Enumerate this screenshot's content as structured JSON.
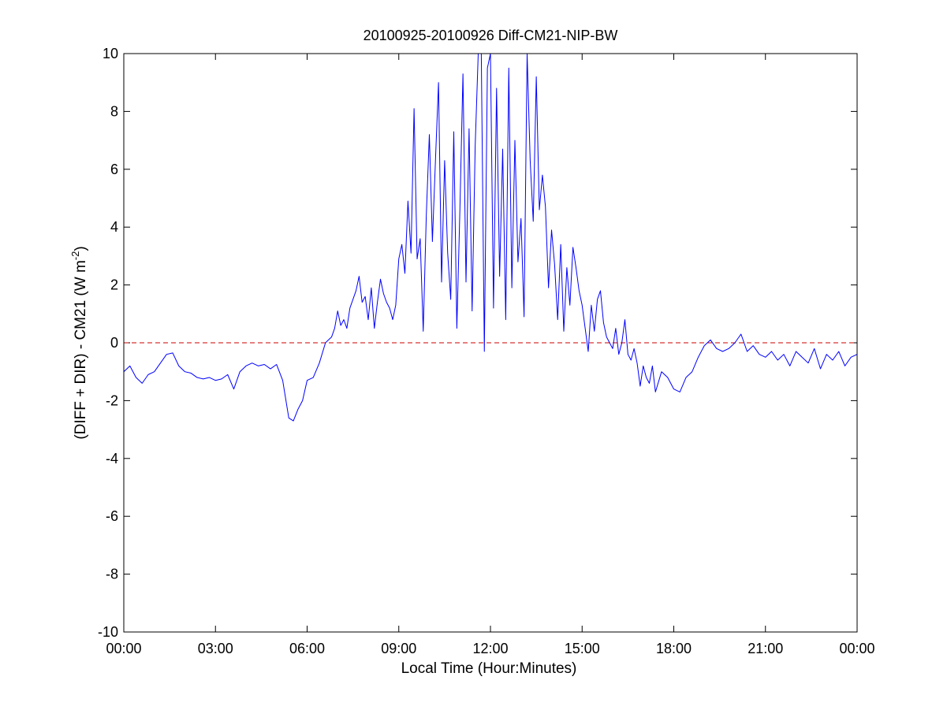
{
  "chart_data": {
    "type": "line",
    "title": "20100925-20100926 Diff-CM21-NIP-BW",
    "xlabel": "Local Time (Hour:Minutes)",
    "ylabel": "(DIFF + DIR) - CM21 (W m-2)",
    "ylabel_parts": {
      "main": "(DIFF + DIR) - CM21 (W m",
      "sup": "-2",
      "close": ")"
    },
    "x_unit": "hours since 00:00 local time",
    "xlim": [
      0,
      24
    ],
    "ylim": [
      -10,
      10
    ],
    "x_ticks": [
      0,
      3,
      6,
      9,
      12,
      15,
      18,
      21,
      24
    ],
    "x_tick_labels": [
      "00:00",
      "03:00",
      "06:00",
      "09:00",
      "12:00",
      "15:00",
      "18:00",
      "21:00",
      "00:00"
    ],
    "y_ticks": [
      -10,
      -8,
      -6,
      -4,
      -2,
      0,
      2,
      4,
      6,
      8,
      10
    ],
    "y_tick_labels": [
      "-10",
      "-8",
      "-6",
      "-4",
      "-2",
      "0",
      "2",
      "4",
      "6",
      "8",
      "10"
    ],
    "grid": false,
    "reference_line": {
      "y": 0,
      "color": "#cc0000",
      "style": "dashed"
    },
    "series": [
      {
        "color": "#0000ff",
        "x": [
          0.0,
          0.2,
          0.4,
          0.6,
          0.8,
          1.0,
          1.2,
          1.4,
          1.6,
          1.8,
          2.0,
          2.2,
          2.4,
          2.6,
          2.8,
          3.0,
          3.2,
          3.4,
          3.6,
          3.8,
          4.0,
          4.2,
          4.4,
          4.6,
          4.8,
          5.0,
          5.2,
          5.4,
          5.55,
          5.7,
          5.85,
          6.0,
          6.2,
          6.4,
          6.6,
          6.8,
          6.9,
          7.0,
          7.1,
          7.2,
          7.3,
          7.4,
          7.5,
          7.6,
          7.7,
          7.8,
          7.9,
          8.0,
          8.1,
          8.2,
          8.3,
          8.4,
          8.5,
          8.6,
          8.7,
          8.8,
          8.9,
          9.0,
          9.1,
          9.2,
          9.3,
          9.4,
          9.5,
          9.6,
          9.7,
          9.8,
          9.9,
          10.0,
          10.1,
          10.2,
          10.3,
          10.4,
          10.5,
          10.6,
          10.7,
          10.8,
          10.9,
          11.0,
          11.1,
          11.2,
          11.3,
          11.4,
          11.5,
          11.6,
          11.7,
          11.8,
          11.9,
          12.0,
          12.1,
          12.2,
          12.3,
          12.4,
          12.5,
          12.6,
          12.7,
          12.8,
          12.9,
          13.0,
          13.1,
          13.2,
          13.3,
          13.4,
          13.5,
          13.6,
          13.7,
          13.8,
          13.9,
          14.0,
          14.1,
          14.2,
          14.3,
          14.4,
          14.5,
          14.6,
          14.7,
          14.8,
          14.9,
          15.0,
          15.1,
          15.2,
          15.3,
          15.4,
          15.5,
          15.6,
          15.7,
          15.8,
          15.9,
          16.0,
          16.1,
          16.2,
          16.3,
          16.4,
          16.5,
          16.6,
          16.7,
          16.8,
          16.9,
          17.0,
          17.1,
          17.2,
          17.3,
          17.4,
          17.6,
          17.8,
          18.0,
          18.2,
          18.4,
          18.6,
          18.8,
          19.0,
          19.2,
          19.4,
          19.6,
          19.8,
          20.0,
          20.2,
          20.4,
          20.6,
          20.8,
          21.0,
          21.2,
          21.4,
          21.6,
          21.8,
          22.0,
          22.2,
          22.4,
          22.6,
          22.8,
          23.0,
          23.2,
          23.4,
          23.6,
          23.8,
          24.0
        ],
        "y": [
          -1.0,
          -0.8,
          -1.2,
          -1.4,
          -1.1,
          -1.0,
          -0.7,
          -0.4,
          -0.35,
          -0.8,
          -1.0,
          -1.05,
          -1.2,
          -1.25,
          -1.2,
          -1.3,
          -1.25,
          -1.1,
          -1.6,
          -1.0,
          -0.8,
          -0.7,
          -0.8,
          -0.75,
          -0.9,
          -0.75,
          -1.3,
          -2.6,
          -2.7,
          -2.3,
          -2.0,
          -1.3,
          -1.2,
          -0.7,
          0.0,
          0.2,
          0.5,
          1.1,
          0.6,
          0.8,
          0.5,
          1.2,
          1.5,
          1.8,
          2.3,
          1.4,
          1.6,
          0.8,
          1.9,
          0.5,
          1.4,
          2.2,
          1.7,
          1.4,
          1.2,
          0.8,
          1.3,
          2.9,
          3.4,
          2.4,
          4.9,
          3.1,
          8.1,
          2.9,
          3.6,
          0.4,
          4.4,
          7.2,
          3.5,
          6.3,
          9.0,
          2.1,
          6.3,
          3.1,
          1.5,
          7.3,
          0.5,
          4.6,
          9.3,
          2.1,
          7.4,
          1.1,
          6.8,
          10.0,
          10.0,
          -0.3,
          9.5,
          10.0,
          1.2,
          8.8,
          2.3,
          6.7,
          0.8,
          9.5,
          1.9,
          7.0,
          2.8,
          4.3,
          0.9,
          10.0,
          6.3,
          4.2,
          9.2,
          4.6,
          5.8,
          4.7,
          1.9,
          3.9,
          2.7,
          0.8,
          3.4,
          0.4,
          2.6,
          1.3,
          3.3,
          2.6,
          1.8,
          1.3,
          0.5,
          -0.3,
          1.3,
          0.4,
          1.5,
          1.8,
          0.7,
          0.2,
          0.0,
          -0.2,
          0.5,
          -0.4,
          0.0,
          0.8,
          -0.4,
          -0.6,
          -0.2,
          -0.7,
          -1.5,
          -0.8,
          -1.2,
          -1.4,
          -0.8,
          -1.7,
          -1.0,
          -1.2,
          -1.6,
          -1.7,
          -1.2,
          -1.0,
          -0.5,
          -0.1,
          0.1,
          -0.2,
          -0.3,
          -0.2,
          0.0,
          0.3,
          -0.3,
          -0.1,
          -0.4,
          -0.5,
          -0.3,
          -0.6,
          -0.4,
          -0.8,
          -0.3,
          -0.5,
          -0.7,
          -0.2,
          -0.9,
          -0.4,
          -0.6,
          -0.3,
          -0.8,
          -0.5,
          -0.4
        ]
      }
    ]
  }
}
